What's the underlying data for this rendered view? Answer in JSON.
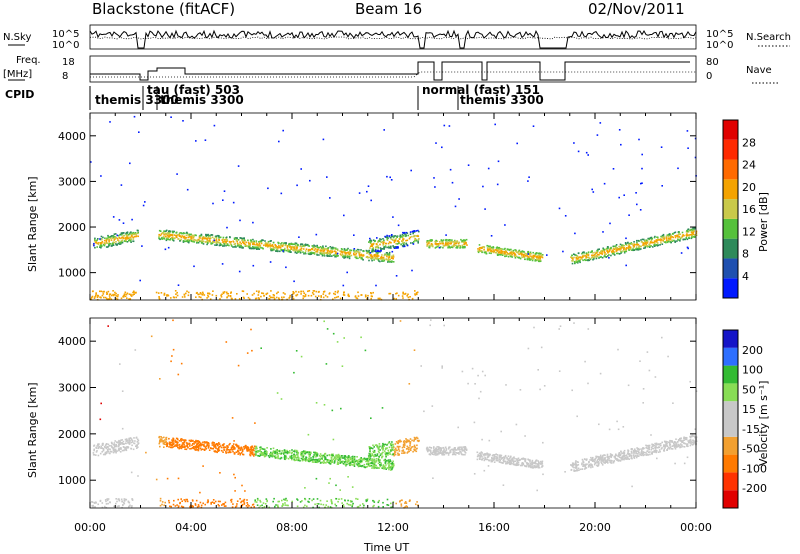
{
  "header": {
    "station": "Blackstone (fitACF)",
    "beam": "Beam 16",
    "date": "02/Nov/2011"
  },
  "top_panel": {
    "left_label": "N.Sky",
    "right_label": "N.Search",
    "left_ticks": [
      "10^5",
      "10^0"
    ],
    "right_ticks": [
      "10^5",
      "10^0"
    ]
  },
  "freq_panel": {
    "left_label_1": "Freq.",
    "left_label_2": "[MHz]",
    "right_label": "Nave",
    "left_ticks": [
      "18",
      "8"
    ],
    "right_ticks": [
      "80",
      "0"
    ]
  },
  "cpid": {
    "label": "CPID",
    "modes": [
      "themis 3300",
      "tau (fast) 503",
      "themis 3300",
      "normal (fast) 151",
      "themis 3300"
    ]
  },
  "colors": {
    "power": [
      "#0019ff",
      "#1f50b0",
      "#2e8a5a",
      "#55c13b",
      "#c9c94a",
      "#f4a300",
      "#ff6a00",
      "#ff2a00",
      "#e00000"
    ],
    "velocity": [
      "#1515c8",
      "#2e6fff",
      "#33bb33",
      "#88dd55",
      "#c8c8c8",
      "#c8c8c8",
      "#f2a030",
      "#ff7a00",
      "#ff3300",
      "#e00000"
    ]
  },
  "chart_data": [
    {
      "type": "heatmap",
      "title": "Power",
      "xlabel": "Time UT",
      "ylabel": "Slant Range [km]",
      "x_ticks": [
        "00:00",
        "04:00",
        "08:00",
        "12:00",
        "16:00",
        "20:00",
        "00:00"
      ],
      "y_ticks": [
        "1000",
        "2000",
        "3000",
        "4000"
      ],
      "xlim_hours": [
        0,
        24
      ],
      "ylim": [
        400,
        4500
      ],
      "colorbar_label": "Power [dB]",
      "colorbar_ticks": [
        "4",
        "8",
        "12",
        "16",
        "20",
        "24",
        "28"
      ],
      "colorbar_range": [
        0,
        30
      ]
    },
    {
      "type": "heatmap",
      "title": "Velocity",
      "xlabel": "Time UT",
      "ylabel": "Slant Range [km]",
      "x_ticks": [
        "00:00",
        "04:00",
        "08:00",
        "12:00",
        "16:00",
        "20:00",
        "00:00"
      ],
      "y_ticks": [
        "1000",
        "2000",
        "3000",
        "4000"
      ],
      "xlim_hours": [
        0,
        24
      ],
      "ylim": [
        400,
        4500
      ],
      "colorbar_label": "Velocity [m s⁻¹]",
      "colorbar_ticks": [
        "200",
        "100",
        "50",
        "15",
        "-15",
        "-50",
        "-100",
        "-200"
      ]
    }
  ]
}
